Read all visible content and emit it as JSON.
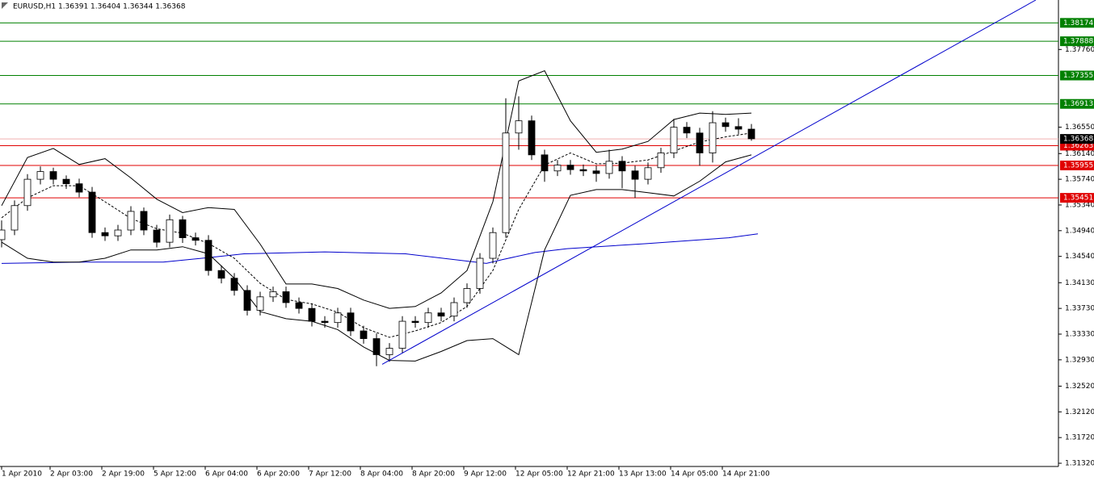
{
  "chart_data": {
    "type": "candlestick",
    "title": "EURUSD,H1  1.36391 1.36404 1.36344 1.36368",
    "xlim": [
      -0.5,
      327
    ],
    "ylim": [
      1.3127,
      1.3853
    ],
    "yticks": [
      {
        "value": 1.3132,
        "label": "1.31320"
      },
      {
        "value": 1.3172,
        "label": "1.31720"
      },
      {
        "value": 1.3212,
        "label": "1.32120"
      },
      {
        "value": 1.3252,
        "label": "1.32520"
      },
      {
        "value": 1.3293,
        "label": "1.32930"
      },
      {
        "value": 1.3333,
        "label": "1.33330"
      },
      {
        "value": 1.3373,
        "label": "1.33730"
      },
      {
        "value": 1.3413,
        "label": "1.34130"
      },
      {
        "value": 1.3454,
        "label": "1.34540"
      },
      {
        "value": 1.3494,
        "label": "1.34940"
      },
      {
        "value": 1.3534,
        "label": "1.35340"
      },
      {
        "value": 1.3574,
        "label": "1.35740"
      },
      {
        "value": 1.3614,
        "label": "1.36140"
      },
      {
        "value": 1.3655,
        "label": "1.36550"
      },
      {
        "value": 1.3776,
        "label": "1.37760"
      }
    ],
    "xticks": [
      {
        "value": 0,
        "label": "1 Apr 2010"
      },
      {
        "value": 15,
        "label": "2 Apr 03:00"
      },
      {
        "value": 31,
        "label": "2 Apr 19:00"
      },
      {
        "value": 47,
        "label": "5 Apr 12:00"
      },
      {
        "value": 63,
        "label": "6 Apr 04:00"
      },
      {
        "value": 79,
        "label": "6 Apr 20:00"
      },
      {
        "value": 95,
        "label": "7 Apr 12:00"
      },
      {
        "value": 111,
        "label": "8 Apr 04:00"
      },
      {
        "value": 127,
        "label": "8 Apr 20:00"
      },
      {
        "value": 143,
        "label": "9 Apr 12:00"
      },
      {
        "value": 159,
        "label": "12 Apr 05:00"
      },
      {
        "value": 175,
        "label": "12 Apr 21:00"
      },
      {
        "value": 191,
        "label": "13 Apr 13:00"
      },
      {
        "value": 207,
        "label": "14 Apr 05:00"
      },
      {
        "value": 223,
        "label": "14 Apr 21:00"
      }
    ],
    "x": [
      0,
      4,
      8,
      12,
      16,
      20,
      24,
      28,
      32,
      36,
      40,
      44,
      48,
      52,
      56,
      60,
      64,
      68,
      72,
      76,
      80,
      84,
      88,
      92,
      96,
      100,
      104,
      108,
      112,
      116,
      120,
      124,
      128,
      132,
      136,
      140,
      144,
      148,
      152,
      156,
      160,
      164,
      168,
      172,
      176,
      180,
      184,
      188,
      192,
      196,
      200,
      204,
      208,
      212,
      216,
      220,
      224,
      228,
      232
    ],
    "open": [
      1.348,
      1.3495,
      1.3533,
      1.3574,
      1.3586,
      1.3574,
      1.3567,
      1.3554,
      1.3491,
      1.3486,
      1.3495,
      1.3524,
      1.3495,
      1.3476,
      1.3511,
      1.3483,
      1.3479,
      1.3432,
      1.342,
      1.3401,
      1.337,
      1.3391,
      1.3399,
      1.3382,
      1.3373,
      1.3353,
      1.3351,
      1.3366,
      1.3338,
      1.3326,
      1.3301,
      1.3311,
      1.3353,
      1.3351,
      1.3366,
      1.3361,
      1.3382,
      1.3404,
      1.3451,
      1.3491,
      1.3646,
      1.3665,
      1.3612,
      1.3587,
      1.3596,
      1.3589,
      1.3587,
      1.3583,
      1.3602,
      1.3587,
      1.3574,
      1.3592,
      1.3615,
      1.3655,
      1.3646,
      1.3615,
      1.3662,
      1.3656,
      1.3652
    ],
    "high": [
      1.351,
      1.3541,
      1.3582,
      1.3594,
      1.3592,
      1.358,
      1.3575,
      1.3562,
      1.3499,
      1.3503,
      1.3532,
      1.353,
      1.3503,
      1.3519,
      1.3517,
      1.3491,
      1.3487,
      1.344,
      1.3428,
      1.3409,
      1.3399,
      1.3407,
      1.3407,
      1.339,
      1.3381,
      1.3361,
      1.3374,
      1.3374,
      1.3346,
      1.3334,
      1.3319,
      1.3361,
      1.3361,
      1.3374,
      1.3374,
      1.339,
      1.3412,
      1.3459,
      1.3499,
      1.37,
      1.3703,
      1.3673,
      1.362,
      1.3604,
      1.3604,
      1.3597,
      1.3595,
      1.362,
      1.361,
      1.3595,
      1.36,
      1.3623,
      1.3668,
      1.3663,
      1.3654,
      1.368,
      1.367,
      1.3669,
      1.366
    ],
    "low": [
      1.3468,
      1.3487,
      1.3525,
      1.3566,
      1.3566,
      1.3559,
      1.3546,
      1.3483,
      1.3478,
      1.3478,
      1.3487,
      1.3487,
      1.3468,
      1.3468,
      1.3475,
      1.3471,
      1.3424,
      1.3412,
      1.3393,
      1.3362,
      1.3362,
      1.3383,
      1.3374,
      1.3365,
      1.3345,
      1.3343,
      1.3343,
      1.333,
      1.3318,
      1.3283,
      1.329,
      1.3303,
      1.3343,
      1.3343,
      1.3353,
      1.3353,
      1.3374,
      1.3396,
      1.3443,
      1.3483,
      1.362,
      1.3604,
      1.357,
      1.3579,
      1.3581,
      1.3579,
      1.357,
      1.3575,
      1.356,
      1.3545,
      1.3566,
      1.3584,
      1.3607,
      1.3638,
      1.3595,
      1.36,
      1.3648,
      1.3644,
      1.3634
    ],
    "close": [
      1.3495,
      1.3533,
      1.3574,
      1.3586,
      1.3574,
      1.3567,
      1.3554,
      1.3491,
      1.3486,
      1.3495,
      1.3524,
      1.3495,
      1.3476,
      1.3511,
      1.3483,
      1.3479,
      1.3432,
      1.342,
      1.3401,
      1.337,
      1.3391,
      1.3399,
      1.3382,
      1.3373,
      1.3353,
      1.3351,
      1.3366,
      1.3338,
      1.3326,
      1.3301,
      1.3311,
      1.3353,
      1.3351,
      1.3366,
      1.3361,
      1.3382,
      1.3404,
      1.3451,
      1.3491,
      1.3646,
      1.3665,
      1.3612,
      1.3587,
      1.3596,
      1.3589,
      1.3587,
      1.3583,
      1.3602,
      1.3587,
      1.3574,
      1.3592,
      1.3615,
      1.3655,
      1.3646,
      1.3615,
      1.3662,
      1.3656,
      1.3652,
      1.3637
    ],
    "bands": {
      "color": "#000000",
      "x": [
        0,
        8,
        16,
        24,
        32,
        40,
        48,
        56,
        64,
        72,
        80,
        88,
        96,
        104,
        112,
        120,
        128,
        136,
        144,
        152,
        160,
        168,
        176,
        184,
        192,
        200,
        208,
        216,
        224,
        232
      ],
      "upper": [
        1.3533,
        1.3608,
        1.3622,
        1.3597,
        1.3606,
        1.3576,
        1.3543,
        1.3522,
        1.353,
        1.3527,
        1.3473,
        1.3411,
        1.3411,
        1.3404,
        1.3386,
        1.3373,
        1.3376,
        1.3397,
        1.3432,
        1.3539,
        1.3727,
        1.3743,
        1.3665,
        1.3616,
        1.3621,
        1.3633,
        1.3667,
        1.3677,
        1.3675,
        1.3677
      ],
      "middle": [
        1.3514,
        1.3545,
        1.3564,
        1.3564,
        1.3539,
        1.3513,
        1.3497,
        1.349,
        1.3474,
        1.3451,
        1.3412,
        1.3387,
        1.338,
        1.3367,
        1.3343,
        1.3328,
        1.3338,
        1.3351,
        1.3376,
        1.3432,
        1.3527,
        1.3596,
        1.3615,
        1.3598,
        1.3599,
        1.3604,
        1.3618,
        1.3632,
        1.364,
        1.3646
      ],
      "lower": [
        1.3476,
        1.3451,
        1.3445,
        1.3445,
        1.3451,
        1.3464,
        1.3464,
        1.3469,
        1.3458,
        1.342,
        1.3368,
        1.3357,
        1.3353,
        1.334,
        1.3313,
        1.3292,
        1.3291,
        1.3306,
        1.3323,
        1.3326,
        1.3301,
        1.3464,
        1.3549,
        1.3558,
        1.3558,
        1.3553,
        1.3548,
        1.3571,
        1.3601,
        1.3612
      ]
    },
    "ma": {
      "color": "#0000cc",
      "x": [
        0,
        25,
        50,
        62,
        75,
        100,
        125,
        150,
        155,
        165,
        175,
        200,
        225,
        234
      ],
      "values": [
        1.3443,
        1.3445,
        1.3445,
        1.3451,
        1.3458,
        1.3461,
        1.3458,
        1.3443,
        1.3449,
        1.346,
        1.3466,
        1.3474,
        1.3483,
        1.3489
      ]
    },
    "trendline": {
      "color": "#0000cc",
      "x": [
        117.75,
        320
      ],
      "values": [
        1.3286,
        1.3853
      ]
    },
    "levels": [
      {
        "value": 1.38174,
        "color": "#008000"
      },
      {
        "value": 1.37888,
        "color": "#008000"
      },
      {
        "value": 1.37355,
        "color": "#008000"
      },
      {
        "value": 1.36913,
        "color": "#008000"
      },
      {
        "value": 1.36263,
        "color": "#e00000"
      },
      {
        "value": 1.35955,
        "color": "#e00000"
      },
      {
        "value": 1.35451,
        "color": "#e00000"
      }
    ],
    "bid": {
      "value": 1.36368,
      "color": "#000000"
    }
  }
}
